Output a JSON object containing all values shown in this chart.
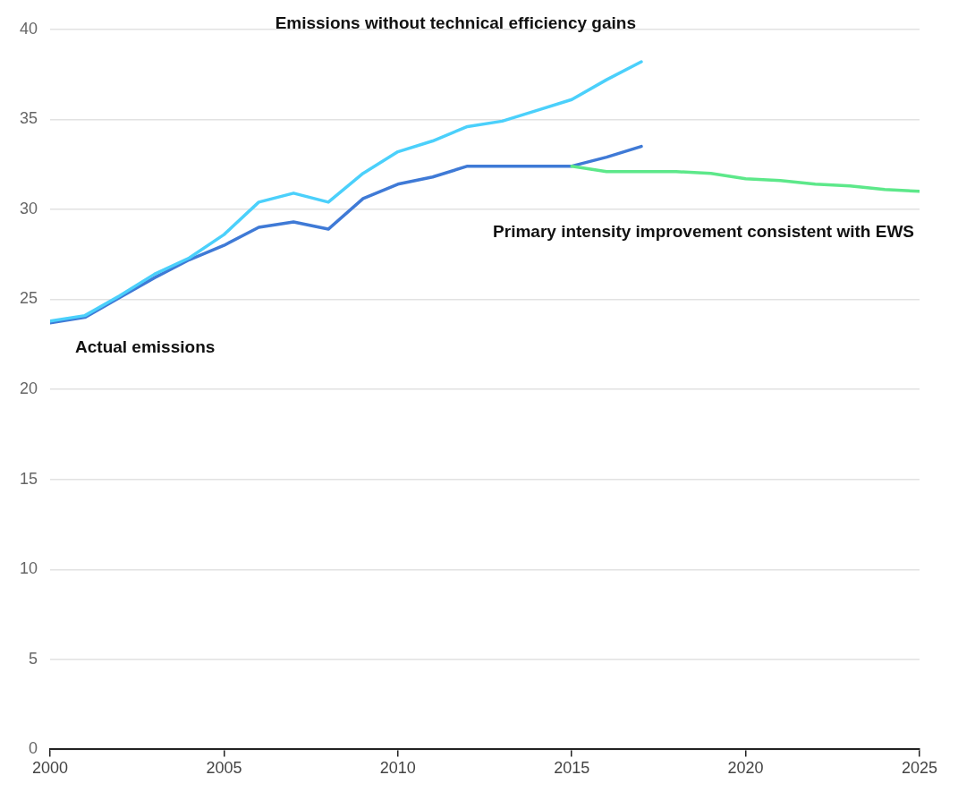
{
  "chart_data": {
    "type": "line",
    "x": [
      2000,
      2001,
      2002,
      2003,
      2004,
      2005,
      2006,
      2007,
      2008,
      2009,
      2010,
      2011,
      2012,
      2013,
      2014,
      2015,
      2016,
      2017
    ],
    "series": [
      {
        "name": "Emissions without technical efficiency gains",
        "color": "#4bd0fb",
        "values": [
          23.8,
          24.1,
          25.2,
          26.4,
          27.3,
          28.6,
          30.4,
          30.9,
          30.4,
          32.0,
          33.2,
          33.8,
          34.6,
          34.9,
          35.5,
          36.1,
          37.2,
          38.2
        ]
      },
      {
        "name": "Primary intensity improvement consistent with EWS",
        "color": "#5de88a",
        "x": [
          2015,
          2016,
          2017,
          2018,
          2019,
          2020,
          2021,
          2022,
          2023,
          2024,
          2025
        ],
        "values": [
          32.4,
          32.1,
          32.1,
          32.1,
          32.0,
          31.7,
          31.6,
          31.4,
          31.3,
          31.1,
          31.0
        ]
      },
      {
        "name": "Actual emissions",
        "color": "#3f7ad6",
        "values": [
          23.7,
          24.0,
          25.1,
          26.2,
          27.2,
          28.0,
          29.0,
          29.3,
          28.9,
          30.6,
          31.4,
          31.8,
          32.4,
          32.4,
          32.4,
          32.4,
          32.9,
          33.5
        ]
      }
    ],
    "xlim": [
      2000,
      2025
    ],
    "xticks": [
      2000,
      2005,
      2010,
      2015,
      2020,
      2025
    ],
    "ylim": [
      0,
      40
    ],
    "yticks": [
      0,
      5,
      10,
      15,
      20,
      25,
      30,
      35,
      40
    ],
    "grid": "y",
    "marker": "none",
    "line_style": "solid"
  }
}
